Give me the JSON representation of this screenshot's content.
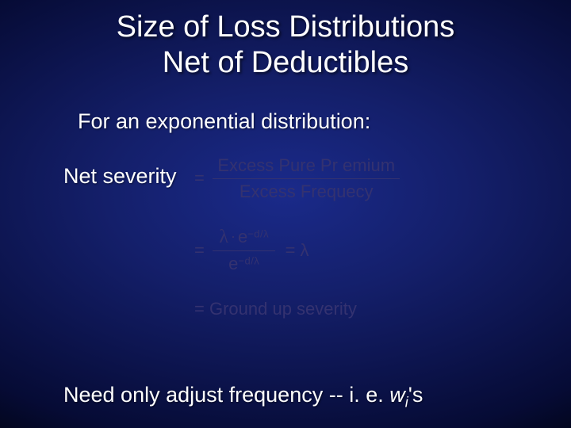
{
  "title_line1": "Size of Loss Distributions",
  "title_line2": "Net of Deductibles",
  "subtitle": "For an exponential distribution:",
  "net_severity_label": "Net severity",
  "formula": {
    "frac1": {
      "num": "Excess Pure Pr emium",
      "den": "Excess Frequecy"
    },
    "line2_num_left": "λ",
    "line2_e": "e",
    "line2_exp": "−d/λ",
    "line2_result": "= λ",
    "line3": "= Ground up severity",
    "eq": "="
  },
  "bottom_prefix": "Need only adjust frequency -- i. e. ",
  "bottom_var": "w",
  "bottom_sub": "i",
  "bottom_suffix": "'s",
  "colors": {
    "text": "#ffffff",
    "formula": "#343270"
  }
}
